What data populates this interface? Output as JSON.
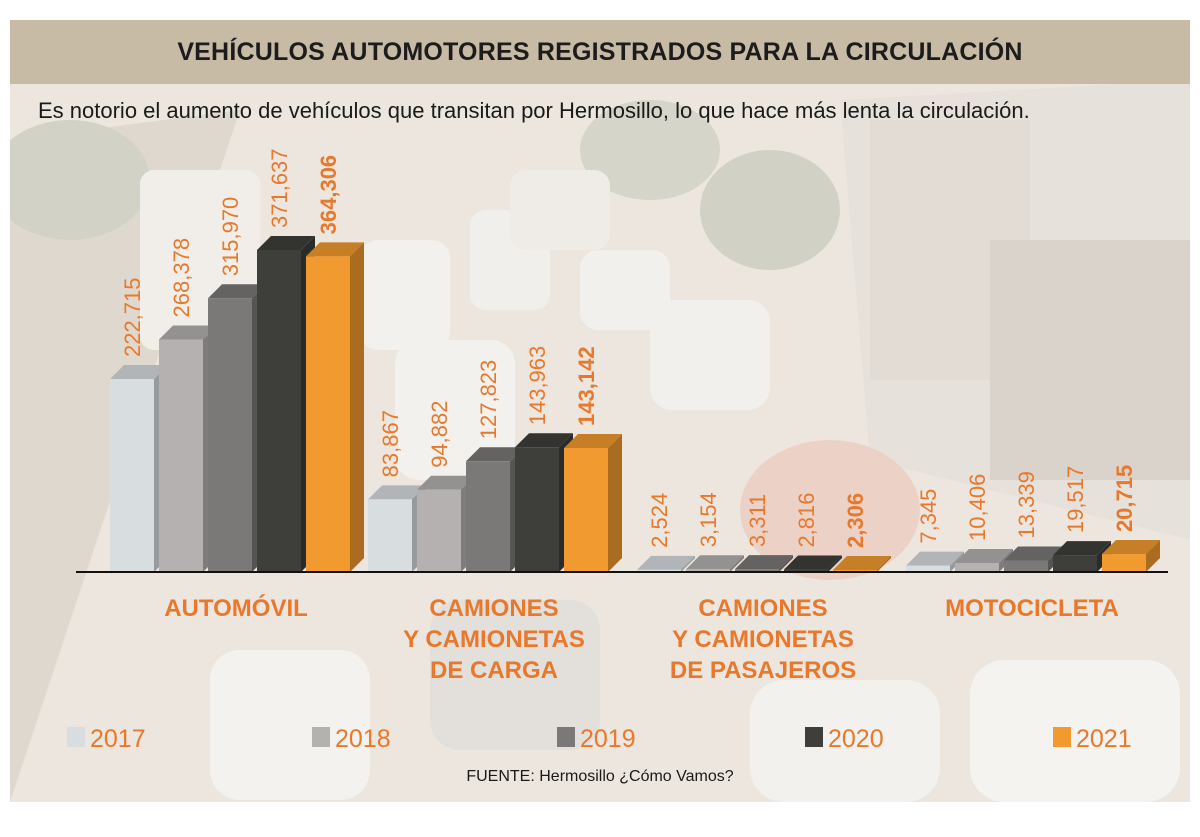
{
  "title": "VEHÍCULOS AUTOMOTORES REGISTRADOS PARA LA CIRCULACIÓN",
  "subtitle": "Es notorio el aumento de vehículos que transitan por Hermosillo, lo que hace más lenta la circulación.",
  "source": "FUENTE: Hermosillo ¿Cómo Vamos?",
  "colors": {
    "label": "#e8782c",
    "title_bar": "#c8bba6",
    "series": [
      "#d8dde0",
      "#b5b1b1",
      "#7b7978",
      "#3e3f3b",
      "#f19a2f"
    ]
  },
  "chart_data": {
    "type": "bar",
    "categories": [
      [
        "AUTOMÓVIL"
      ],
      [
        "CAMIONES",
        "Y CAMIONETAS",
        "DE CARGA"
      ],
      [
        "CAMIONES",
        "Y CAMIONETAS",
        "DE PASAJEROS"
      ],
      [
        "MOTOCICLETA"
      ]
    ],
    "series": [
      {
        "name": "2017",
        "values": [
          222715,
          83867,
          2524,
          7345
        ],
        "labels": [
          "222,715",
          "83,867",
          "2,524",
          "7,345"
        ]
      },
      {
        "name": "2018",
        "values": [
          268378,
          94882,
          3154,
          10406
        ],
        "labels": [
          "268,378",
          "94,882",
          "3,154",
          "10,406"
        ]
      },
      {
        "name": "2019",
        "values": [
          315970,
          127823,
          3311,
          13339
        ],
        "labels": [
          "315,970",
          "127,823",
          "3,311",
          "13,339"
        ]
      },
      {
        "name": "2020",
        "values": [
          371637,
          143963,
          2816,
          19517
        ],
        "labels": [
          "371,637",
          "143,963",
          "2,816",
          "19,517"
        ]
      },
      {
        "name": "2021",
        "values": [
          364306,
          143142,
          2306,
          20715
        ],
        "labels": [
          "364,306",
          "143,142",
          "2,306",
          "20,715"
        ]
      }
    ],
    "ylim": [
      0,
      371637
    ],
    "grid": false,
    "legend_position": "bottom"
  }
}
